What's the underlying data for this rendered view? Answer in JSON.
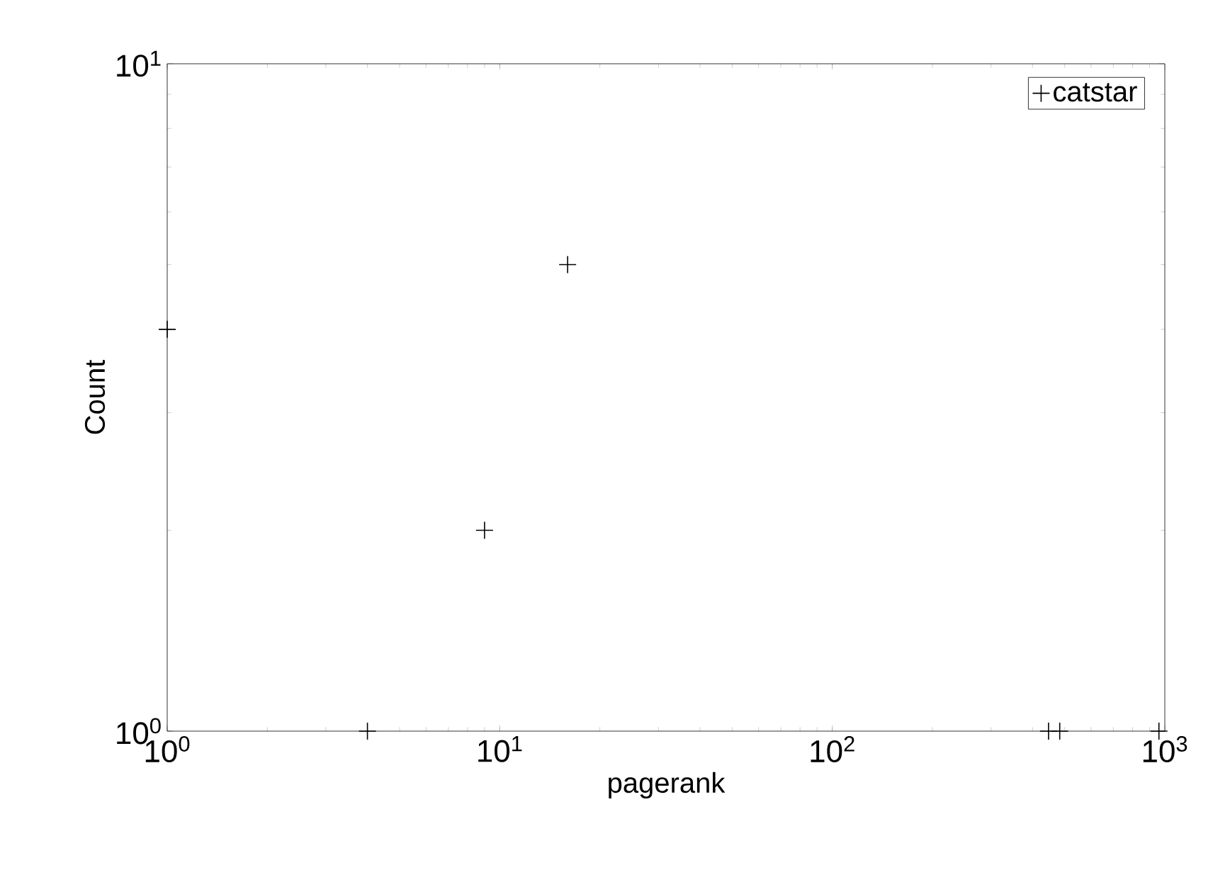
{
  "chart_data": {
    "type": "scatter",
    "xlabel": "pagerank",
    "ylabel": "Count",
    "log": "xy",
    "xlim": [
      1,
      1000
    ],
    "ylim": [
      1,
      10
    ],
    "xticks": [
      {
        "value": 1,
        "label": "10$^{0}$"
      },
      {
        "value": 10,
        "label": "10$^{1}$"
      },
      {
        "value": 100,
        "label": "10$^{2}$"
      },
      {
        "value": 1000,
        "label": "10$^{3}$"
      }
    ],
    "yticks": [
      {
        "value": 1,
        "label": "10$^{0}$"
      },
      {
        "value": 10,
        "label": "10$^{1}$"
      }
    ],
    "marker": "cross",
    "legend": "top right",
    "series": [
      {
        "name": "catstar",
        "color": "#000000",
        "x": [
          1,
          16,
          9,
          4,
          447,
          483,
          960
        ],
        "values": [
          4,
          5,
          2,
          1,
          1,
          1,
          1
        ]
      }
    ]
  }
}
